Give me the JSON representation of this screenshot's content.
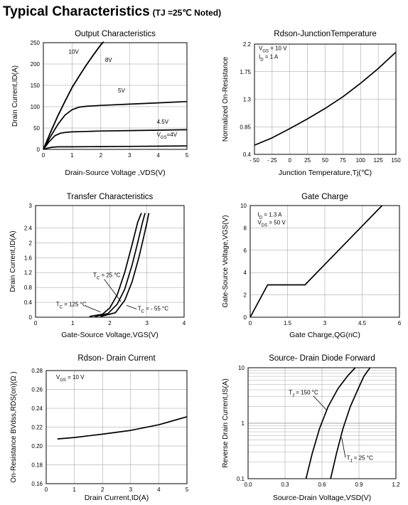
{
  "page": {
    "heading": "Typical Characteristics",
    "condition": "(TJ =25℃ Noted)"
  },
  "chart_data": [
    {
      "id": "output",
      "type": "line",
      "title": "Output Characteristics",
      "xlabel": "Drain-Source Voltage ,VDS(V)",
      "ylabel": "Drain Current,ID(A)",
      "xlim": [
        0,
        5
      ],
      "ylim": [
        0,
        250
      ],
      "xticks": [
        0,
        1,
        2,
        3,
        4,
        5
      ],
      "yticks": [
        0,
        50,
        100,
        150,
        200,
        250
      ],
      "xtick_labels": [
        "0",
        "1",
        "2",
        "3",
        "4",
        "5"
      ],
      "ytick_labels": [
        "0",
        "50",
        "100",
        "150",
        "200",
        "250"
      ],
      "grid": true,
      "series": [
        {
          "name": "10V",
          "x": [
            0,
            0.25,
            0.5,
            0.75,
            1.0,
            1.25,
            1.5,
            1.75,
            2.0,
            2.1
          ],
          "y": [
            0,
            40,
            78,
            112,
            145,
            172,
            198,
            222,
            245,
            252
          ]
        },
        {
          "name": "8V",
          "x": [
            0,
            0.25,
            0.5,
            0.75,
            1.0,
            1.25,
            1.5,
            1.75,
            2.0,
            2.1
          ],
          "y": [
            0,
            40,
            78,
            112,
            145,
            172,
            198,
            222,
            245,
            252
          ]
        },
        {
          "name": "5V",
          "x": [
            0,
            0.25,
            0.5,
            0.75,
            1.0,
            1.25,
            1.5,
            2.0,
            3.0,
            4.0,
            5.0
          ],
          "y": [
            0,
            30,
            58,
            80,
            93,
            99,
            101,
            103,
            106,
            109,
            112
          ]
        },
        {
          "name": "4.5V",
          "x": [
            0,
            0.2,
            0.4,
            0.6,
            0.8,
            1.0,
            1.5,
            2.0,
            3.0,
            4.0,
            5.0
          ],
          "y": [
            0,
            18,
            32,
            38,
            40,
            41,
            42,
            43,
            44,
            45,
            46
          ]
        },
        {
          "name": "VGS=4V",
          "x": [
            0,
            0.15,
            0.3,
            0.5,
            1.0,
            2.0,
            3.0,
            4.0,
            5.0
          ],
          "y": [
            0,
            3,
            5,
            6,
            6,
            6.5,
            7,
            7.5,
            8
          ]
        }
      ],
      "annotations": [
        {
          "text": "10V",
          "x": 0.88,
          "y": 224
        },
        {
          "text": "8V",
          "x": 2.15,
          "y": 205
        },
        {
          "text": "5V",
          "x": 2.6,
          "y": 133
        },
        {
          "text": "4.5V",
          "x": 3.95,
          "y": 60
        },
        {
          "text": "VGS=4V",
          "x": 3.95,
          "y": 30
        }
      ]
    },
    {
      "id": "rdson_temp",
      "type": "line",
      "title": "Rdson-JunctionTemperature",
      "xlabel": "Junction Temperature,Tj(℃)",
      "ylabel": "Normalized On-Resistance",
      "xlim": [
        -50,
        150
      ],
      "ylim": [
        0.4,
        2.2
      ],
      "xticks": [
        -50,
        -25,
        0,
        25,
        50,
        75,
        100,
        125,
        150
      ],
      "yticks": [
        0.4,
        0.85,
        1.3,
        1.75,
        2.2
      ],
      "xtick_labels": [
        "- 50",
        "- 25",
        "0",
        "25",
        "50",
        "75",
        "100",
        "125",
        "150"
      ],
      "ytick_labels": [
        "0.4",
        "0.85",
        "1.3",
        "1.75",
        "2.2"
      ],
      "grid": true,
      "series": [
        {
          "name": "",
          "x": [
            -50,
            -25,
            0,
            25,
            50,
            75,
            100,
            125,
            150
          ],
          "y": [
            0.55,
            0.67,
            0.82,
            0.98,
            1.15,
            1.34,
            1.56,
            1.8,
            2.07
          ]
        }
      ],
      "annotations": [
        {
          "text": "VGS = 10 V",
          "x": -44,
          "y": 2.1
        },
        {
          "text": "ID = 1 A",
          "x": -44,
          "y": 1.96
        }
      ]
    },
    {
      "id": "transfer",
      "type": "line",
      "title": "Transfer Characteristics",
      "xlabel": "Gate-Source Voltage,VGS(V)",
      "ylabel": "Drain Current,ID(A)",
      "xlim": [
        0,
        4
      ],
      "ylim": [
        0,
        3
      ],
      "xticks": [
        0,
        1,
        2,
        3,
        4
      ],
      "yticks": [
        0,
        0.4,
        0.8,
        1.2,
        1.6,
        2.0,
        2.4,
        3
      ],
      "xtick_labels": [
        "0",
        "1",
        "2",
        "3",
        "4"
      ],
      "ytick_labels": [
        "0",
        "0.4",
        "0.8",
        "1.2",
        "1.6",
        "2",
        "2.4",
        "3"
      ],
      "grid": true,
      "series": [
        {
          "name": "TC = 125 °C",
          "x": [
            1.45,
            1.8,
            2.0,
            2.2,
            2.4,
            2.6,
            2.75,
            2.85
          ],
          "y": [
            0.02,
            0.08,
            0.25,
            0.6,
            1.2,
            1.95,
            2.55,
            2.8
          ]
        },
        {
          "name": "TC = 25 °C",
          "x": [
            1.6,
            1.95,
            2.2,
            2.4,
            2.6,
            2.75,
            2.88,
            2.95
          ],
          "y": [
            0.02,
            0.1,
            0.35,
            0.75,
            1.4,
            2.0,
            2.55,
            2.8
          ]
        },
        {
          "name": "TC = - 55 °C",
          "x": [
            1.75,
            2.15,
            2.4,
            2.6,
            2.78,
            2.9,
            3.0,
            3.05
          ],
          "y": [
            0.02,
            0.12,
            0.45,
            0.95,
            1.6,
            2.1,
            2.55,
            2.8
          ]
        }
      ],
      "annotations": [
        {
          "text": "TC = 25 °C",
          "x": 1.55,
          "y": 1.08
        },
        {
          "text": "TC = 125 °C",
          "x": 0.55,
          "y": 0.3
        },
        {
          "text": "TC = - 55 °C",
          "x": 2.75,
          "y": 0.18
        }
      ]
    },
    {
      "id": "gate_charge",
      "type": "line",
      "title": "Gate Charge",
      "xlabel": "Gate Charge,QG(nC)",
      "ylabel": "Gate-Source Voltage,VGS(V)",
      "xlim": [
        0,
        6
      ],
      "ylim": [
        0,
        10
      ],
      "xticks": [
        0,
        1.5,
        3,
        4.5,
        6
      ],
      "yticks": [
        0,
        2,
        4,
        6,
        8,
        10
      ],
      "xtick_labels": [
        "0",
        "1.5",
        "3",
        "4.5",
        "6"
      ],
      "ytick_labels": [
        "0",
        "2",
        "4",
        "6",
        "8",
        "10"
      ],
      "grid": true,
      "series": [
        {
          "name": "",
          "x": [
            0,
            0.7,
            2.2,
            5.3
          ],
          "y": [
            0,
            2.9,
            2.9,
            10
          ]
        }
      ],
      "annotations": [
        {
          "text": "ID = 1.3 A",
          "x": 0.3,
          "y": 9.0
        },
        {
          "text": "VDS = 50 V",
          "x": 0.3,
          "y": 8.3
        }
      ]
    },
    {
      "id": "rdson_current",
      "type": "line",
      "title": "Rdson- Drain Current",
      "xlabel": "Drain Current,ID(A)",
      "ylabel": "On-Resistance BVdss,RDS(on)(Ω )",
      "xlim": [
        0,
        5
      ],
      "ylim": [
        0.16,
        0.28
      ],
      "xticks": [
        0,
        1,
        2,
        3,
        4,
        5
      ],
      "yticks": [
        0.16,
        0.18,
        0.2,
        0.22,
        0.24,
        0.26,
        0.28
      ],
      "xtick_labels": [
        "0",
        "1",
        "2",
        "3",
        "4",
        "5"
      ],
      "ytick_labels": [
        "0.16",
        "0.18",
        "0.20",
        "0.22",
        "0.24",
        "0.26",
        "0.28"
      ],
      "grid": true,
      "series": [
        {
          "name": "",
          "x": [
            0.4,
            1.0,
            2.0,
            3.0,
            4.0,
            5.0
          ],
          "y": [
            0.2075,
            0.209,
            0.2125,
            0.2165,
            0.2225,
            0.231
          ]
        }
      ],
      "annotations": [
        {
          "text": "VGS = 10 V",
          "x": 0.35,
          "y": 0.271
        }
      ]
    },
    {
      "id": "diode",
      "type": "line",
      "title": "Source- Drain Diode Forward",
      "xlabel": "Source-Drain Voltage,VSD(V)",
      "ylabel": "Reverse Drain Current,IS(A)",
      "xlim": [
        0,
        1.2
      ],
      "ylim": [
        0.1,
        10
      ],
      "yscale": "log",
      "xticks": [
        0,
        0.3,
        0.6,
        0.9,
        1.2
      ],
      "yticks": [
        0.1,
        1,
        10
      ],
      "xtick_labels": [
        "0.0",
        "0.3",
        "0.6",
        "0.9",
        "1.2"
      ],
      "ytick_labels": [
        "0.1",
        "1",
        "10"
      ],
      "grid": true,
      "series": [
        {
          "name": "TJ = 150 °C",
          "x": [
            0.47,
            0.52,
            0.58,
            0.65,
            0.73,
            0.81,
            0.87
          ],
          "y": [
            0.1,
            0.28,
            0.8,
            2.0,
            4.2,
            7.2,
            10
          ]
        },
        {
          "name": "TJ = 25 °C",
          "x": [
            0.67,
            0.72,
            0.77,
            0.83,
            0.89,
            0.94,
            0.99
          ],
          "y": [
            0.1,
            0.3,
            0.8,
            2.0,
            4.0,
            7.0,
            10
          ]
        }
      ],
      "annotations": [
        {
          "text": "TJ = 150 °C",
          "x": 0.33,
          "y": 3.3
        },
        {
          "text": "TJ = 25 °C",
          "x": 0.8,
          "y": 0.22
        }
      ]
    }
  ]
}
